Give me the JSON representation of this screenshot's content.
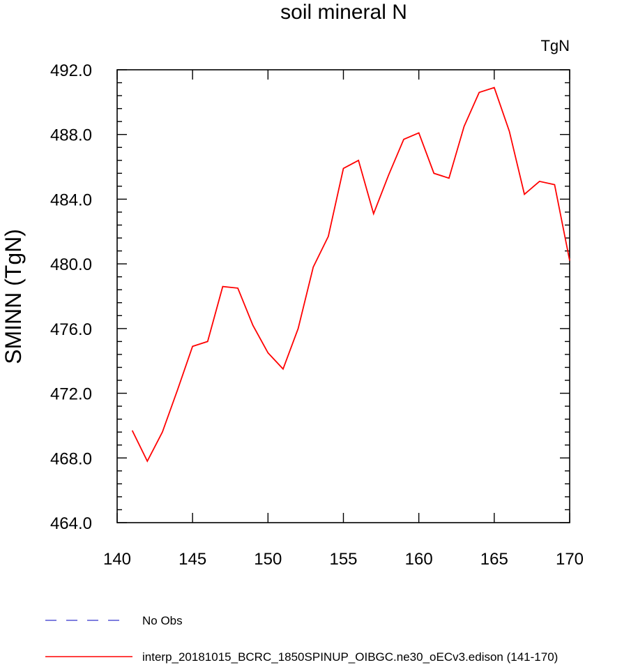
{
  "chart_data": {
    "type": "line",
    "title": "soil mineral N",
    "units_label": "TgN",
    "ylabel": "SMINN  (TgN)",
    "xlabel": "",
    "xlim": [
      140,
      170
    ],
    "ylim": [
      464,
      492
    ],
    "x_ticks": [
      140,
      145,
      150,
      155,
      160,
      165,
      170
    ],
    "x_tick_labels": [
      "140",
      "145",
      "150",
      "155",
      "160",
      "165",
      "170"
    ],
    "y_ticks": [
      464,
      468,
      472,
      476,
      480,
      484,
      488,
      492
    ],
    "y_tick_labels": [
      "464.0",
      "468.0",
      "472.0",
      "476.0",
      "480.0",
      "484.0",
      "488.0",
      "492.0"
    ],
    "series": [
      {
        "name": "interp_20181015_BCRC_1850SPINUP_OIBGC.ne30_oECv3.edison (141-170)",
        "color": "#ff0000",
        "style": "solid",
        "x": [
          141,
          142,
          143,
          144,
          145,
          146,
          147,
          148,
          149,
          150,
          151,
          152,
          153,
          154,
          155,
          156,
          157,
          158,
          159,
          160,
          161,
          162,
          163,
          164,
          165,
          166,
          167,
          168,
          169,
          170
        ],
        "y": [
          469.7,
          467.8,
          469.6,
          472.2,
          474.9,
          475.2,
          478.6,
          478.5,
          476.2,
          474.5,
          473.5,
          476.0,
          479.8,
          481.7,
          485.9,
          486.4,
          483.1,
          485.5,
          487.7,
          488.1,
          485.6,
          485.3,
          488.5,
          490.6,
          490.9,
          488.2,
          484.3,
          485.1,
          484.9,
          480.2
        ]
      }
    ],
    "legend": [
      {
        "label": "No Obs",
        "color": "#3333cc",
        "style": "dashed"
      },
      {
        "label": "interp_20181015_BCRC_1850SPINUP_OIBGC.ne30_oECv3.edison (141-170)",
        "color": "#ff0000",
        "style": "solid"
      }
    ]
  }
}
